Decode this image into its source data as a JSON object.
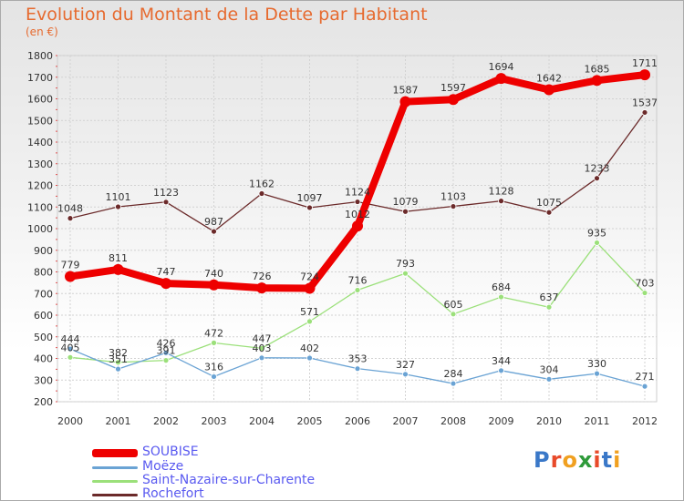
{
  "header": {
    "title": "Evolution du Montant de la Dette par Habitant",
    "unit": "(en €)"
  },
  "logo": {
    "text": "Proxiti"
  },
  "colors": {
    "title": "#e66a2f",
    "legend_text": "#5a5af0"
  },
  "chart_data": {
    "type": "line",
    "title": "Evolution du Montant de la Dette par Habitant",
    "ylabel": "(en €)",
    "xlabel": "",
    "ylim": [
      200,
      1800
    ],
    "yticks": [
      200,
      300,
      400,
      500,
      600,
      700,
      800,
      900,
      1000,
      1100,
      1200,
      1300,
      1400,
      1500,
      1600,
      1700,
      1800
    ],
    "grid": true,
    "legend_position": "bottom-left",
    "categories": [
      "2000",
      "2001",
      "2002",
      "2003",
      "2004",
      "2005",
      "2006",
      "2007",
      "2008",
      "2009",
      "2010",
      "2011",
      "2012"
    ],
    "series": [
      {
        "name": "SOUBISE",
        "color": "#ee0000",
        "values": [
          779,
          811,
          747,
          740,
          726,
          724,
          1012,
          1587,
          1597,
          1694,
          1642,
          1685,
          1711
        ]
      },
      {
        "name": "Moëze",
        "color": "#6aa3d4",
        "values": [
          444,
          351,
          426,
          316,
          403,
          402,
          353,
          327,
          284,
          344,
          304,
          330,
          271
        ]
      },
      {
        "name": "Saint-Nazaire-sur-Charente",
        "color": "#9be07a",
        "values": [
          405,
          382,
          391,
          472,
          447,
          571,
          716,
          793,
          605,
          684,
          637,
          935,
          703
        ]
      },
      {
        "name": "Rochefort",
        "color": "#6b2a2a",
        "values": [
          1048,
          1101,
          1123,
          987,
          1162,
          1097,
          1124,
          1079,
          1103,
          1128,
          1075,
          1233,
          1537
        ]
      }
    ]
  }
}
